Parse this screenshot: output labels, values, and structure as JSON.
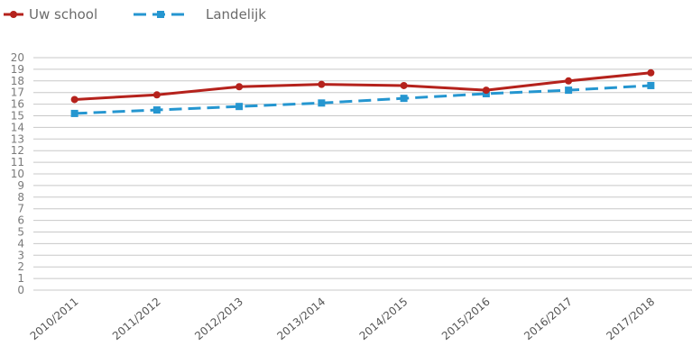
{
  "chart_data": {
    "type": "line",
    "title": "",
    "xlabel": "",
    "ylabel": "",
    "categories": [
      "2010/2011",
      "2011/2012",
      "2012/2013",
      "2013/2014",
      "2014/2015",
      "2015/2016",
      "2016/2017",
      "2017/2018"
    ],
    "ylim": [
      0,
      20
    ],
    "yticks": [
      0,
      1,
      2,
      3,
      4,
      5,
      6,
      7,
      8,
      9,
      10,
      11,
      12,
      13,
      14,
      15,
      16,
      17,
      18,
      19,
      20
    ],
    "grid": true,
    "legend_position": "top-left",
    "series": [
      {
        "name": "Uw school",
        "values": [
          16.4,
          16.8,
          17.5,
          17.7,
          17.6,
          17.2,
          18.0,
          18.7
        ],
        "color": "#b5221c",
        "marker": "circle",
        "line_style": "solid"
      },
      {
        "name": "Landelijk",
        "values": [
          15.2,
          15.5,
          15.8,
          16.1,
          16.5,
          16.9,
          17.2,
          17.6
        ],
        "color": "#2596d0",
        "marker": "square",
        "line_style": "dashed"
      }
    ]
  }
}
